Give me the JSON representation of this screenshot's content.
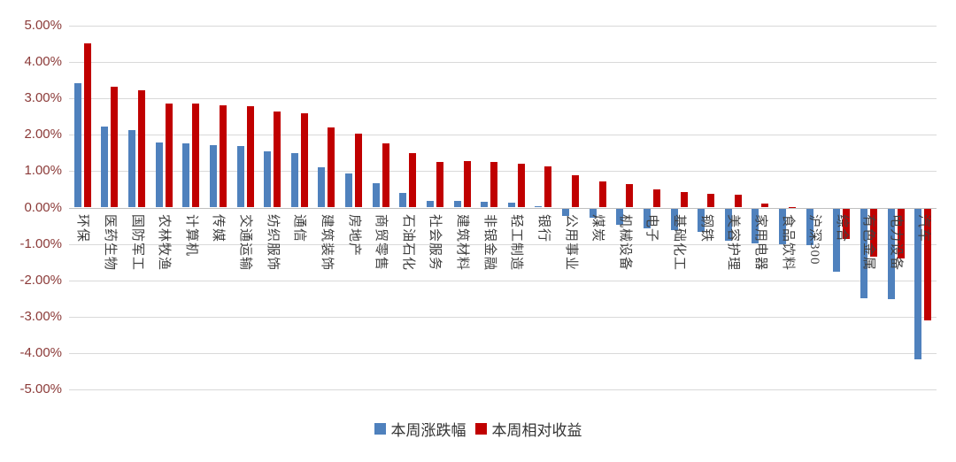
{
  "chart_data": {
    "type": "bar",
    "title": "",
    "categories": [
      "环保",
      "医药生物",
      "国防军工",
      "农林牧渔",
      "计算机",
      "传媒",
      "交通运输",
      "纺织服饰",
      "通信",
      "建筑装饰",
      "房地产",
      "商贸零售",
      "石油石化",
      "社会服务",
      "建筑材料",
      "非银金融",
      "轻工制造",
      "银行",
      "公用事业",
      "煤炭",
      "机械设备",
      "电子",
      "基础化工",
      "钢铁",
      "美容护理",
      "家用电器",
      "食品饮料",
      "沪深300",
      "综合",
      "有色金属",
      "电力设备",
      "汽车"
    ],
    "series": [
      {
        "name": "本周涨跌幅",
        "color": "#4F81BD",
        "values": [
          3.43,
          2.22,
          2.14,
          1.78,
          1.77,
          1.72,
          1.7,
          1.54,
          1.5,
          1.11,
          0.94,
          0.66,
          0.39,
          0.18,
          0.19,
          0.16,
          0.14,
          0.04,
          -0.2,
          -0.26,
          -0.44,
          -0.54,
          -0.6,
          -0.64,
          -0.88,
          -0.95,
          -0.98,
          -1.02,
          -1.75,
          -2.46,
          -2.5,
          -4.16
        ]
      },
      {
        "name": "本周相对收益",
        "color": "#C00000",
        "values": [
          4.52,
          3.31,
          3.22,
          2.87,
          2.85,
          2.82,
          2.79,
          2.63,
          2.59,
          2.21,
          2.03,
          1.76,
          1.49,
          1.26,
          1.27,
          1.26,
          1.21,
          1.12,
          0.9,
          0.71,
          0.64,
          0.51,
          0.43,
          0.38,
          0.35,
          0.12,
          0.02,
          0.0,
          -0.85,
          -1.33,
          -1.38,
          -3.07
        ]
      }
    ],
    "y_axis": {
      "min": -5,
      "max": 5,
      "tick_step": 1,
      "unit": "%",
      "ticks": [
        {
          "value": 5,
          "label": "5.00%"
        },
        {
          "value": 4,
          "label": "4.00%"
        },
        {
          "value": 3,
          "label": "3.00%"
        },
        {
          "value": 2,
          "label": "2.00%"
        },
        {
          "value": 1,
          "label": "1.00%"
        },
        {
          "value": 0,
          "label": "0.00%"
        },
        {
          "value": -1,
          "label": "-1.00%"
        },
        {
          "value": -2,
          "label": "-2.00%"
        },
        {
          "value": -3,
          "label": "-3.00%"
        },
        {
          "value": -4,
          "label": "-4.00%"
        },
        {
          "value": -5,
          "label": "-5.00%"
        }
      ]
    },
    "grid": true,
    "legend_position": "bottom",
    "x_label_rotation": "vertical"
  },
  "colors": {
    "gridline": "#d9d9d9",
    "zero_line": "#bfbfbf",
    "y_tick_text": "#8b3a38",
    "category_text": "#404040",
    "background": "#ffffff"
  }
}
